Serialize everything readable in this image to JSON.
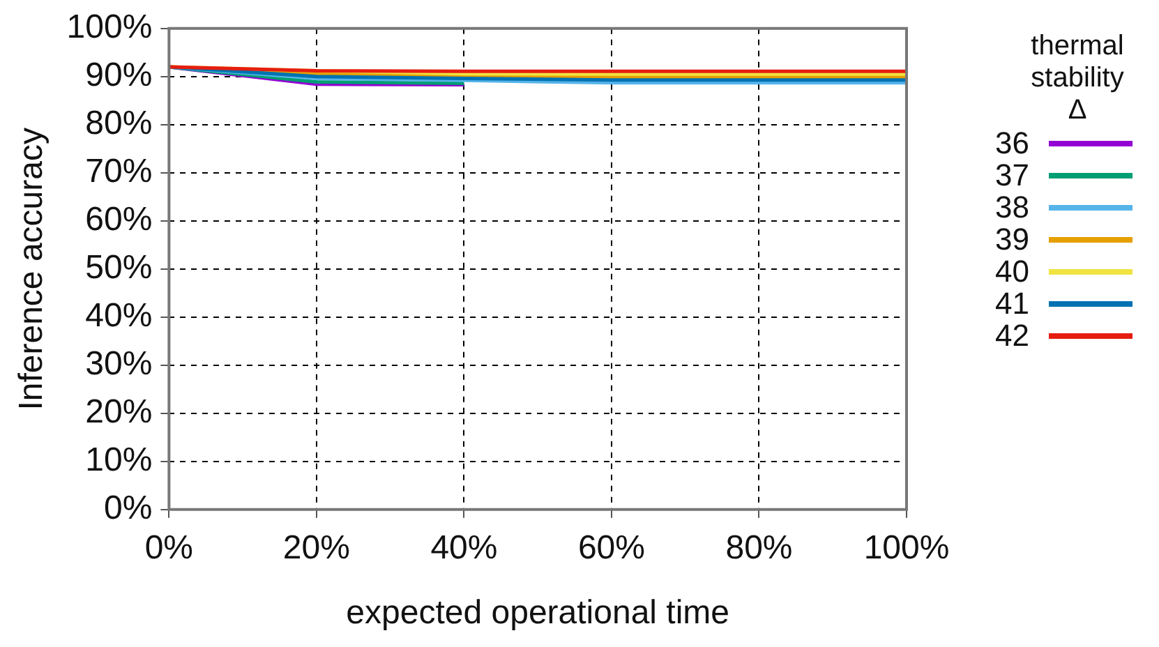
{
  "chart_data": {
    "type": "line",
    "xlabel": "expected operational time",
    "ylabel": "Inference accuracy",
    "legend_title": "thermal stability Δ",
    "legend": "right",
    "x": [
      0,
      20,
      40,
      60,
      80,
      100
    ],
    "xlim": [
      0,
      100
    ],
    "xticks": [
      {
        "value": 0,
        "label": "0%"
      },
      {
        "value": 20,
        "label": "20%"
      },
      {
        "value": 40,
        "label": "40%"
      },
      {
        "value": 60,
        "label": "60%"
      },
      {
        "value": 80,
        "label": "80%"
      },
      {
        "value": 100,
        "label": "100%"
      }
    ],
    "ylim": [
      0,
      100
    ],
    "yticks": [
      {
        "value": 0,
        "label": "0%"
      },
      {
        "value": 10,
        "label": "10%"
      },
      {
        "value": 20,
        "label": "20%"
      },
      {
        "value": 30,
        "label": "30%"
      },
      {
        "value": 40,
        "label": "40%"
      },
      {
        "value": 50,
        "label": "50%"
      },
      {
        "value": 60,
        "label": "60%"
      },
      {
        "value": 70,
        "label": "70%"
      },
      {
        "value": 80,
        "label": "80%"
      },
      {
        "value": 90,
        "label": "90%"
      },
      {
        "value": 100,
        "label": "100%"
      }
    ],
    "grid": true,
    "marker": "none",
    "line_style": "solid",
    "series": [
      {
        "name": "36",
        "color": "#9400d3",
        "values": [
          92,
          88.4,
          88.3,
          null,
          null,
          null
        ]
      },
      {
        "name": "37",
        "color": "#009e73",
        "values": [
          92,
          88.9,
          88.6,
          null,
          null,
          null
        ]
      },
      {
        "name": "38",
        "color": "#56b4e9",
        "values": [
          92,
          89.6,
          89.2,
          88.7,
          88.7,
          88.7
        ]
      },
      {
        "name": "39",
        "color": "#e69f00",
        "values": [
          92,
          90.6,
          90.1,
          89.9,
          89.9,
          89.9
        ]
      },
      {
        "name": "40",
        "color": "#f0e442",
        "values": [
          92,
          91.2,
          90.6,
          90.5,
          90.5,
          90.5
        ]
      },
      {
        "name": "41",
        "color": "#0072b2",
        "values": [
          92,
          90,
          89.6,
          89.3,
          89.3,
          89.3
        ]
      },
      {
        "name": "42",
        "color": "#e51e10",
        "values": [
          92,
          91.2,
          91.1,
          91.1,
          91.1,
          91.1
        ]
      }
    ]
  }
}
